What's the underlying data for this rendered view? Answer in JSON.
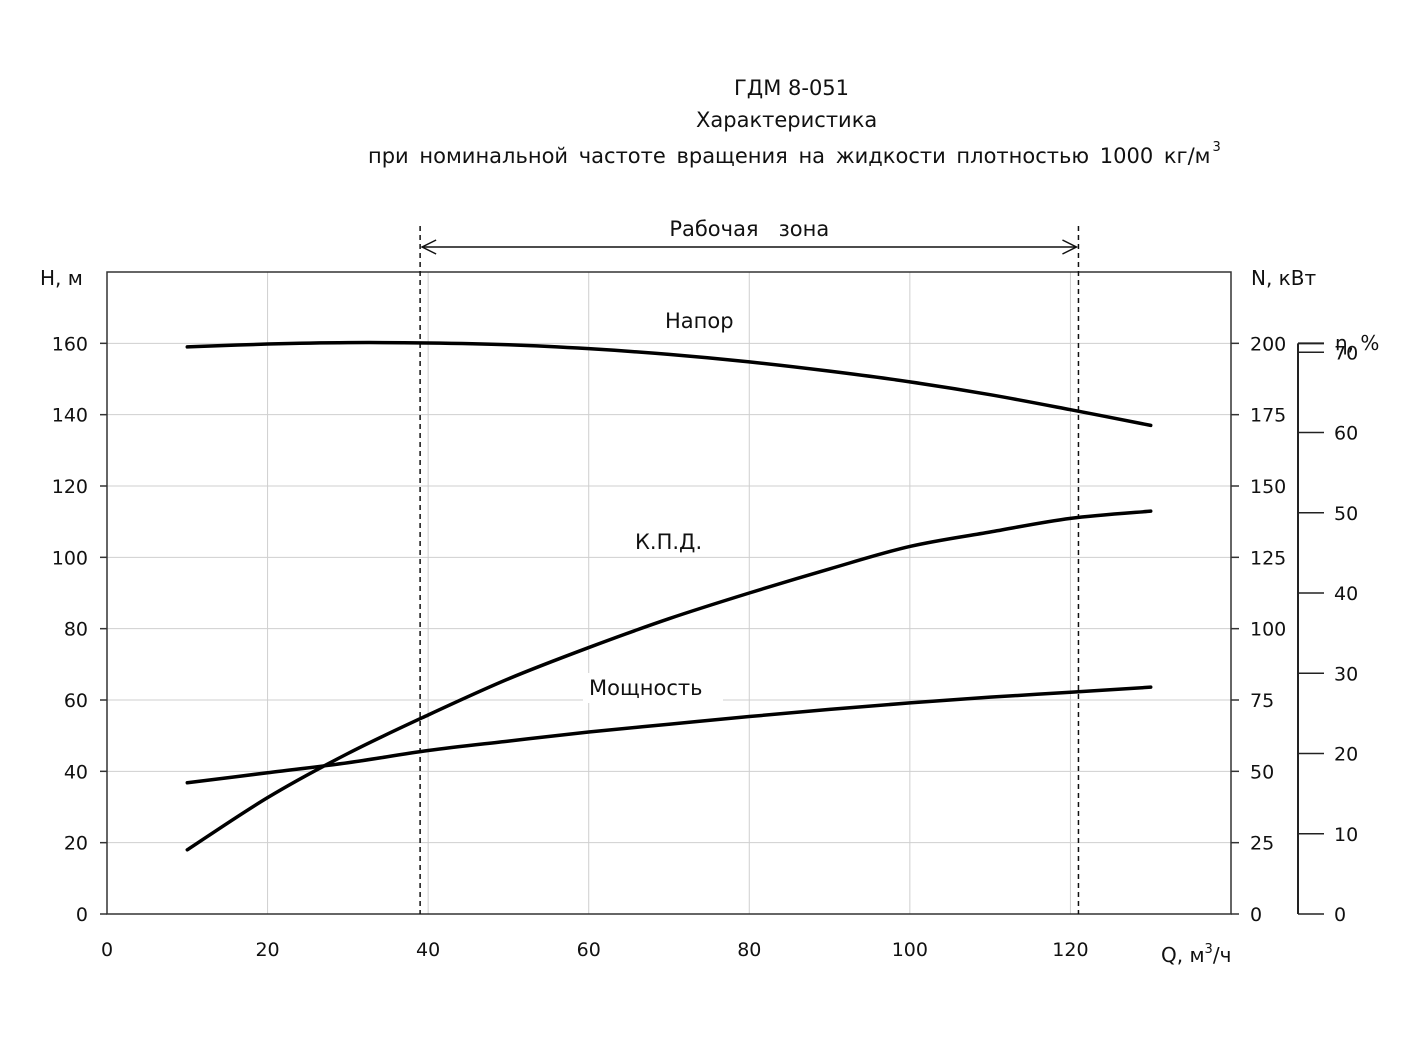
{
  "title": {
    "line1": "ГДМ 8-051",
    "line2": "Характеристика",
    "line3": "при номинальной  частоте  вращения  на жидкости плотностью  1000  кг/м",
    "line3_sup": "3"
  },
  "chart_data": {
    "type": "line",
    "x_axis": {
      "label": "Q, м",
      "label_sup": "3",
      "label_suffix": "/ч",
      "range": [
        0,
        140
      ],
      "ticks": [
        0,
        20,
        40,
        60,
        80,
        100,
        120
      ]
    },
    "y_axis_left": {
      "label": "H, м",
      "range": [
        0,
        180
      ],
      "ticks": [
        0,
        20,
        40,
        60,
        80,
        100,
        120,
        140,
        160
      ]
    },
    "y_axis_right_power": {
      "label": "N, кВт",
      "range": [
        0,
        225
      ],
      "ticks": [
        0,
        25,
        50,
        75,
        100,
        125,
        150,
        175,
        200
      ]
    },
    "y_axis_right_eff": {
      "label": "η, %",
      "range": [
        0,
        80
      ],
      "ticks": [
        0,
        10,
        20,
        30,
        40,
        50,
        60,
        70
      ]
    },
    "grid": true,
    "working_zone": {
      "label": "Рабочая   зона",
      "x_start": 39,
      "x_end": 121
    },
    "series": [
      {
        "name": "Напор",
        "axis": "left",
        "x": [
          10,
          20,
          30,
          40,
          50,
          60,
          70,
          80,
          90,
          100,
          110,
          120,
          130
        ],
        "y": [
          159,
          159.8,
          160.2,
          160.1,
          159.6,
          158.5,
          156.9,
          154.8,
          152.2,
          149.2,
          145.6,
          141.4,
          137
        ]
      },
      {
        "name": "К.П.Д.",
        "axis": "right_eff",
        "x": [
          10,
          20,
          30,
          40,
          50,
          60,
          70,
          80,
          90,
          100,
          110,
          120,
          130
        ],
        "y": [
          8,
          14.5,
          20,
          24.8,
          29.3,
          33.2,
          36.8,
          40,
          43,
          45.8,
          47.6,
          49.3,
          50.2
        ]
      },
      {
        "name": "Мощность",
        "axis": "right_power",
        "x": [
          10,
          20,
          30,
          40,
          50,
          60,
          70,
          80,
          90,
          100,
          110,
          120,
          130
        ],
        "y": [
          46,
          49.5,
          53,
          57.3,
          60.6,
          63.8,
          66.5,
          69.2,
          71.7,
          74,
          76,
          77.7,
          79.5
        ]
      }
    ]
  }
}
